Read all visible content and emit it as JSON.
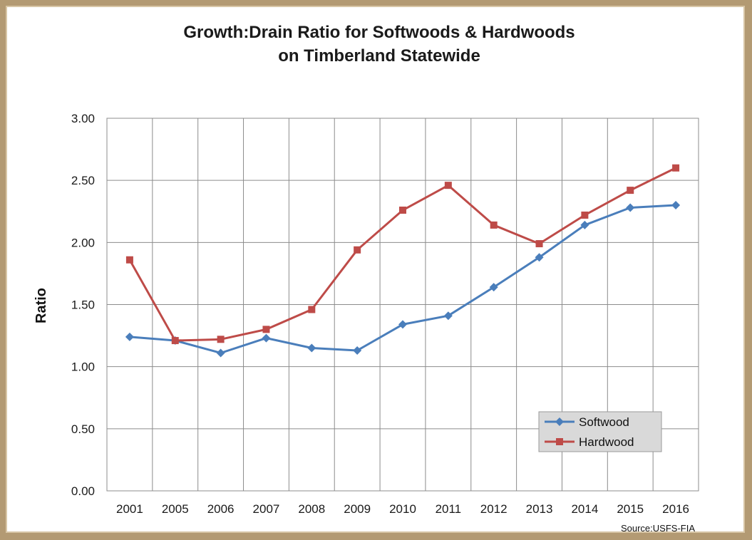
{
  "chart_data": {
    "type": "line",
    "title_lines": [
      "Growth:Drain Ratio for Softwoods & Hardwoods",
      "on Timberland Statewide"
    ],
    "ylabel": "Ratio",
    "xlabel": "",
    "categories": [
      "2001",
      "2005",
      "2006",
      "2007",
      "2008",
      "2009",
      "2010",
      "2011",
      "2012",
      "2013",
      "2014",
      "2015",
      "2016"
    ],
    "ylim": [
      0,
      3
    ],
    "yticks": [
      "0.00",
      "0.50",
      "1.00",
      "1.50",
      "2.00",
      "2.50",
      "3.00"
    ],
    "grid": true,
    "legend_position": "bottom-right",
    "source": "Source:USFS-FIA",
    "series": [
      {
        "name": "Softwood",
        "color": "#4a7ebb",
        "marker": "diamond",
        "values": [
          1.24,
          1.21,
          1.11,
          1.23,
          1.15,
          1.13,
          1.34,
          1.41,
          1.64,
          1.88,
          2.14,
          2.28,
          2.3
        ]
      },
      {
        "name": "Hardwood",
        "color": "#be4b48",
        "marker": "square",
        "values": [
          1.86,
          1.21,
          1.22,
          1.3,
          1.46,
          1.94,
          2.26,
          2.46,
          2.14,
          1.99,
          2.22,
          2.42,
          2.6
        ]
      }
    ]
  }
}
